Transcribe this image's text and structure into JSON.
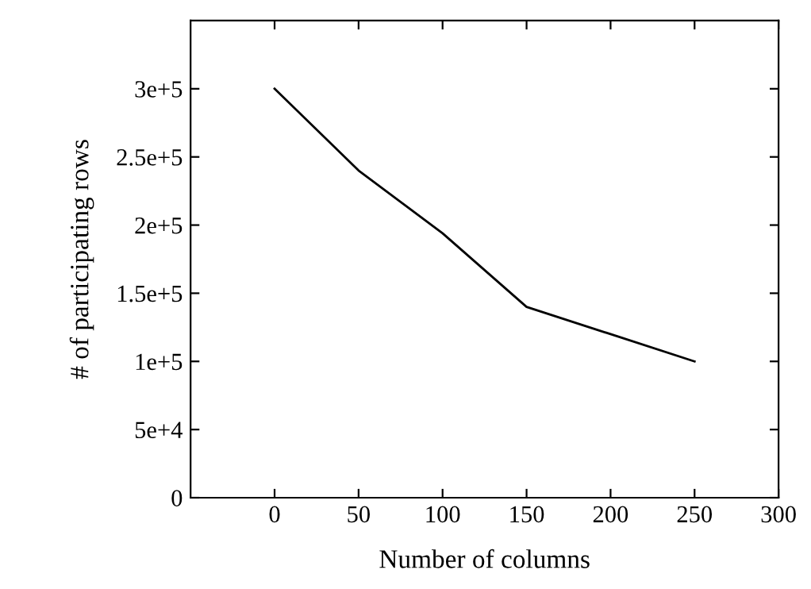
{
  "chart_data": {
    "type": "line",
    "xlabel": "Number of columns",
    "ylabel": "# of participating rows",
    "x": [
      0,
      50,
      100,
      150,
      200,
      250
    ],
    "series": [
      {
        "color": "#000000",
        "values": [
          300000,
          240000,
          194000,
          140000,
          120000,
          100000
        ]
      }
    ],
    "xlim": [
      -50,
      300
    ],
    "xticks": [
      0,
      50,
      100,
      150,
      200,
      250,
      300
    ],
    "ylim": [
      0,
      350000
    ],
    "yticks": [
      0,
      {
        "value": 50000,
        "label": "5e+4"
      },
      {
        "value": 100000,
        "label": "1e+5"
      },
      {
        "value": 150000,
        "label": "1.5e+5"
      },
      {
        "value": 200000,
        "label": "2e+5"
      },
      {
        "value": 250000,
        "label": "2.5e+5"
      },
      {
        "value": 300000,
        "label": "3e+5"
      }
    ],
    "grid": false,
    "legend": false,
    "marker": "none",
    "line_style": "solid"
  }
}
